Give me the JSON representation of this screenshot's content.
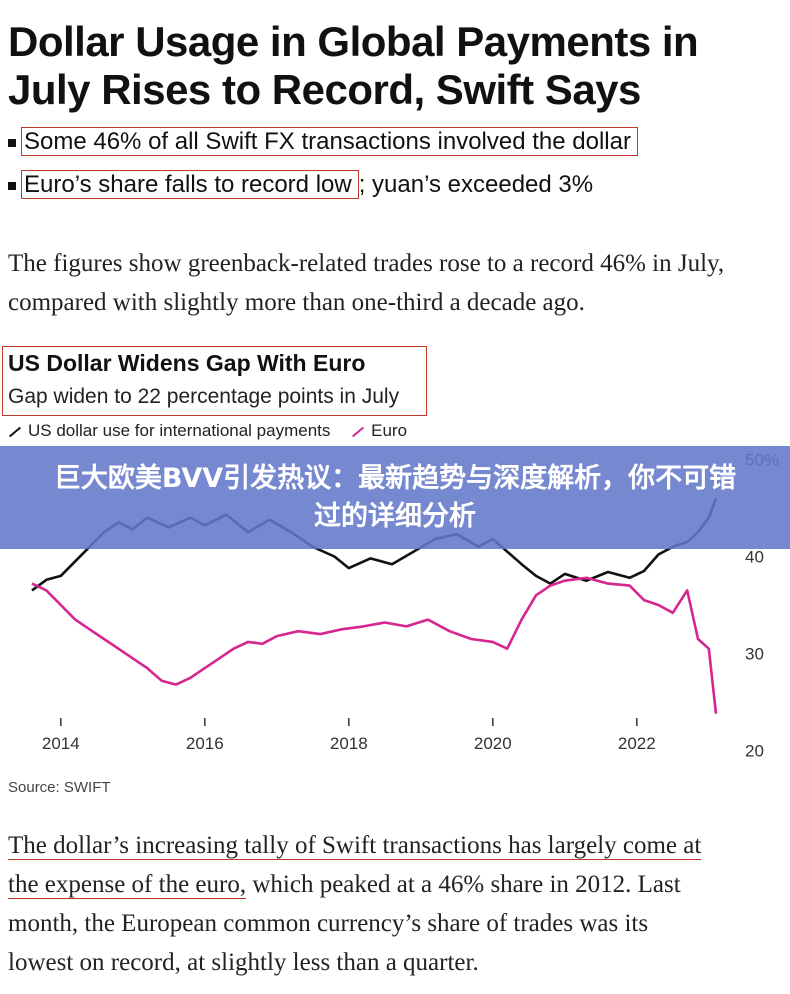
{
  "headline": "Dollar Usage in Global Payments in July Rises to Record, Swift Says",
  "bullets": [
    {
      "boxed": "Some 46% of all Swift FX transactions involved the dollar",
      "rest": ""
    },
    {
      "boxed": "Euro’s share falls to record low",
      "rest": "; yuan’s exceeded 3%"
    }
  ],
  "paragraph1": "The figures show greenback-related trades rose to a record 46% in July, compared with slightly more than one-third a decade ago.",
  "chart": {
    "title": "US Dollar Widens Gap With Euro",
    "subtitle": "Gap widen to 22 percentage points in July",
    "legend": [
      {
        "label": "US dollar use for international payments",
        "color": "#111111"
      },
      {
        "label": "Euro",
        "color": "#d6268f"
      }
    ],
    "source": "Source: SWIFT"
  },
  "chart_data": {
    "type": "line",
    "x_ticks": [
      "2014",
      "2016",
      "2018",
      "2020",
      "2022"
    ],
    "y_ticks": [
      "50%",
      "40",
      "30",
      "20"
    ],
    "ylim": [
      18,
      52
    ],
    "xlim": [
      2013.6,
      2023.1
    ],
    "series": [
      {
        "name": "US dollar use for international payments",
        "color": "#111111",
        "points": [
          [
            2013.6,
            36.5
          ],
          [
            2013.8,
            37.6
          ],
          [
            2014.0,
            38.0
          ],
          [
            2014.2,
            39.5
          ],
          [
            2014.4,
            41.0
          ],
          [
            2014.6,
            42.5
          ],
          [
            2014.8,
            43.5
          ],
          [
            2015.0,
            42.8
          ],
          [
            2015.2,
            44.0
          ],
          [
            2015.5,
            43.0
          ],
          [
            2015.8,
            44.0
          ],
          [
            2016.0,
            43.2
          ],
          [
            2016.3,
            44.3
          ],
          [
            2016.6,
            42.5
          ],
          [
            2016.9,
            43.8
          ],
          [
            2017.2,
            42.5
          ],
          [
            2017.5,
            41.0
          ],
          [
            2017.8,
            40.0
          ],
          [
            2018.0,
            38.8
          ],
          [
            2018.3,
            39.8
          ],
          [
            2018.6,
            39.2
          ],
          [
            2018.9,
            40.5
          ],
          [
            2019.2,
            41.8
          ],
          [
            2019.5,
            42.3
          ],
          [
            2019.8,
            41.0
          ],
          [
            2020.0,
            41.8
          ],
          [
            2020.2,
            40.5
          ],
          [
            2020.4,
            39.2
          ],
          [
            2020.6,
            38.0
          ],
          [
            2020.8,
            37.2
          ],
          [
            2021.0,
            38.2
          ],
          [
            2021.3,
            37.5
          ],
          [
            2021.6,
            38.4
          ],
          [
            2021.9,
            37.8
          ],
          [
            2022.1,
            38.5
          ],
          [
            2022.3,
            40.2
          ],
          [
            2022.5,
            41.0
          ],
          [
            2022.7,
            41.5
          ],
          [
            2022.85,
            42.5
          ],
          [
            2023.0,
            44.0
          ],
          [
            2023.1,
            46.0
          ]
        ]
      },
      {
        "name": "Euro",
        "color": "#d6268f",
        "points": [
          [
            2013.6,
            37.2
          ],
          [
            2013.8,
            36.5
          ],
          [
            2014.0,
            35.0
          ],
          [
            2014.2,
            33.5
          ],
          [
            2014.4,
            32.5
          ],
          [
            2014.6,
            31.5
          ],
          [
            2014.8,
            30.5
          ],
          [
            2015.0,
            29.5
          ],
          [
            2015.2,
            28.5
          ],
          [
            2015.4,
            27.2
          ],
          [
            2015.6,
            26.8
          ],
          [
            2015.8,
            27.5
          ],
          [
            2016.0,
            28.5
          ],
          [
            2016.2,
            29.5
          ],
          [
            2016.4,
            30.5
          ],
          [
            2016.6,
            31.2
          ],
          [
            2016.8,
            31.0
          ],
          [
            2017.0,
            31.8
          ],
          [
            2017.3,
            32.3
          ],
          [
            2017.6,
            32.0
          ],
          [
            2017.9,
            32.5
          ],
          [
            2018.2,
            32.8
          ],
          [
            2018.5,
            33.2
          ],
          [
            2018.8,
            32.8
          ],
          [
            2019.1,
            33.5
          ],
          [
            2019.4,
            32.3
          ],
          [
            2019.7,
            31.5
          ],
          [
            2020.0,
            31.2
          ],
          [
            2020.2,
            30.5
          ],
          [
            2020.4,
            33.5
          ],
          [
            2020.6,
            36.0
          ],
          [
            2020.8,
            37.0
          ],
          [
            2021.0,
            37.5
          ],
          [
            2021.3,
            37.8
          ],
          [
            2021.6,
            37.2
          ],
          [
            2021.9,
            37.0
          ],
          [
            2022.1,
            35.5
          ],
          [
            2022.3,
            35.0
          ],
          [
            2022.5,
            34.2
          ],
          [
            2022.7,
            36.5
          ],
          [
            2022.85,
            31.5
          ],
          [
            2023.0,
            30.5
          ],
          [
            2023.1,
            23.8
          ]
        ]
      }
    ]
  },
  "paragraph2": {
    "line1": "The dollar’s increasing tally of Swift transactions has largely come at",
    "line2_ul": "the expense of the euro,",
    "line2_rest": " which peaked at a 46% share in 2012. Last",
    "line3": "month, the European common currency’s share of trades was its",
    "line4": "lowest on record, at slightly less than a quarter."
  },
  "overlay": {
    "text": "巨大欧美BVV引发热议：最新趋势与深度解析，你不可错过的详细分析",
    "bg": "#6378c8"
  }
}
